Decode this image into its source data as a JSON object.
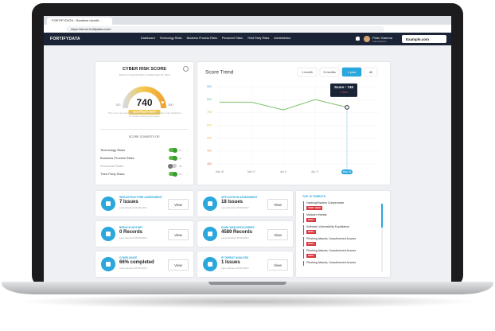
{
  "browser": {
    "tab_title": "FORTIFYDATA - Realtime Identifi...",
    "url": "https://demo.fortifydata.com/"
  },
  "nav": {
    "logo": "FORTIFYDATA",
    "menu": [
      "Dashboard",
      "Technology Risks",
      "Business Process Risks",
      "Personnel Risks",
      "Third Party Risks",
      "Administrator"
    ],
    "user_name": "Peter Gamma",
    "user_role": "Administrator",
    "domain": "Example.com"
  },
  "risk_score": {
    "title": "CYBER RISK SCORE",
    "subtitle": "Based on Detected Risk, updated May 28, 2019",
    "value": 740,
    "min": 200,
    "max": 800,
    "level": "MODERATE RISK",
    "note": "This score has been adjusted based on modifications to the likelihood of certain environment types.",
    "consists_title": "SCORE CONSISTS OF:",
    "components": [
      {
        "label": "Technology Risks",
        "state": "on"
      },
      {
        "label": "Business Process Risks",
        "state": "on"
      },
      {
        "label": "Personnel Risks",
        "state": "off"
      },
      {
        "label": "Third Party Risks",
        "state": "on"
      }
    ]
  },
  "chart_data": {
    "type": "line",
    "title": "Score Trend",
    "ranges": [
      "1 month",
      "3 months",
      "1 year",
      "All"
    ],
    "active_range": "1 year",
    "categories": [
      "Mar 18",
      "Mar 27",
      "Apr 5",
      "Apr 17",
      "May 28"
    ],
    "series": [
      {
        "name": "Score",
        "color": "#7cc36b",
        "values": [
          780,
          780,
          720,
          800,
          740
        ]
      }
    ],
    "ylim": [
      300,
      900
    ],
    "yticks": [
      300,
      400,
      500,
      600,
      700,
      800,
      900
    ],
    "grid": true,
    "tooltip": {
      "title": "Score : 740",
      "change": "-7.50%"
    }
  },
  "cards": [
    {
      "title": "INFRASTRUCTURE ASSESSMENT",
      "value": "7 Issues",
      "checked": "Last checked: 05.28.2019",
      "button": "View"
    },
    {
      "title": "APPLICATION ASSESSMENT",
      "value": "18 Issues",
      "checked": "Last checked: 05.28.2019",
      "button": "View"
    },
    {
      "title": "BREACH HISTORY",
      "value": "0 Records",
      "checked": "Last checked: 05.28.2019",
      "button": "View"
    },
    {
      "title": "DARK WEB DISCOVERIES",
      "value": "4589 Records",
      "checked": "Last checked: 05.28.2019",
      "button": "View"
    },
    {
      "title": "COMPLIANCE",
      "value": "66% completed",
      "checked": "Last checked: 05.28.2019",
      "button": "View"
    },
    {
      "title": "IP THREAT ANALYSIS",
      "value": "1 Issues",
      "checked": "Last checked: 05.28.2019",
      "button": "View"
    }
  ],
  "threats": {
    "title": "TOP 10 THREATS",
    "items": [
      {
        "name": "Hacking/System Compromise",
        "level": "VERY HIGH"
      },
      {
        "name": "Malware threats",
        "level": "HIGH"
      },
      {
        "name": "Software Vulnerability Exploitation",
        "level": "HIGH"
      },
      {
        "name": "Phishing Attacks, Unauthorized Access",
        "level": "HIGH"
      },
      {
        "name": "Phishing Attacks, Unauthorized Access",
        "level": "HIGH"
      },
      {
        "name": "Phishing Attacks, Unauthorized Access",
        "level": null
      }
    ]
  }
}
